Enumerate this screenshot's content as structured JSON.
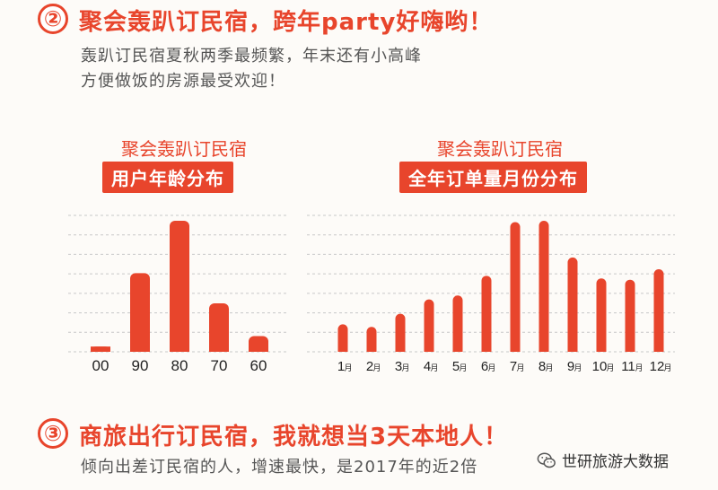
{
  "section2": {
    "number": "②",
    "title": "聚会轰趴订民宿，跨年party好嗨哟！",
    "desc_line1": "轰趴订民宿夏秋两季最频繁，年末还有小高峰",
    "desc_line2": "方便做饭的房源最受欢迎！"
  },
  "section3": {
    "number": "③",
    "title": "商旅出行订民宿，我就想当3天本地人！",
    "desc": "倾向出差订民宿的人，增速最快，是2017年的近2倍"
  },
  "watermark": {
    "text": "世研旅游大数据",
    "icon": "wechat-icon"
  },
  "colors": {
    "accent": "#e8452c",
    "grid": "#c8c8c8"
  },
  "chart_data": [
    {
      "type": "bar",
      "subtitle": "聚会轰趴订民宿",
      "title": "用户年龄分布",
      "categories": [
        "00",
        "90",
        "80",
        "70",
        "60"
      ],
      "values": [
        4,
        60,
        100,
        37,
        12
      ],
      "ylim": [
        0,
        100
      ],
      "grid": true
    },
    {
      "type": "bar",
      "subtitle": "聚会轰趴订民宿",
      "title": "全年订单量月份分布",
      "categories": [
        "1",
        "2",
        "3",
        "4",
        "5",
        "6",
        "7",
        "8",
        "9",
        "10",
        "11",
        "12"
      ],
      "category_unit": "月",
      "values": [
        21,
        19,
        29,
        40,
        43,
        58,
        99,
        100,
        72,
        56,
        55,
        63
      ],
      "ylim": [
        0,
        100
      ],
      "grid": true
    }
  ]
}
